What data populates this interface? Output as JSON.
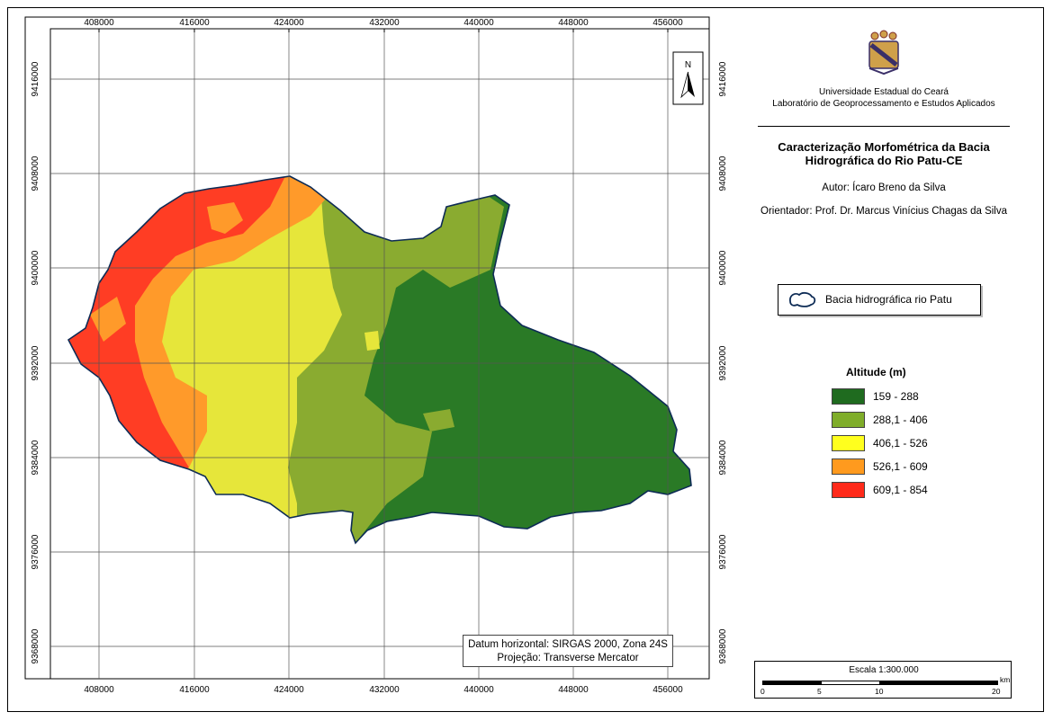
{
  "map": {
    "x_ticks": [
      "408000",
      "416000",
      "424000",
      "432000",
      "440000",
      "448000",
      "456000"
    ],
    "y_ticks": [
      "9416000",
      "9408000",
      "9400000",
      "9392000",
      "9384000",
      "9376000",
      "9368000"
    ],
    "north_label": "N"
  },
  "header": {
    "university": "Universidade Estadual do Ceará",
    "lab": "Laboratório de Geoprocessamento e Estudos Aplicados",
    "title_line1": "Caracterização Morfométrica da Bacia",
    "title_line2": "Hidrográfica do Rio Patu-CE",
    "author": "Autor: Ícaro Breno da Silva",
    "advisor": "Orientador: Prof. Dr. Marcus Vinícius Chagas da Silva"
  },
  "legend": {
    "basin_label": "Bacia hidrográfica rio Patu",
    "altitude_title": "Altitude (m)",
    "classes": [
      {
        "label": "159 - 288",
        "color": "#1f6b1f"
      },
      {
        "label": "288,1 - 406",
        "color": "#7fad2a"
      },
      {
        "label": "406,1 - 526",
        "color": "#ffff1e"
      },
      {
        "label": "526,1 - 609",
        "color": "#ff9a1e"
      },
      {
        "label": "609,1 - 854",
        "color": "#ff2a1a"
      }
    ]
  },
  "datum": {
    "line1": "Datum horizontal: SIRGAS 2000, Zona 24S",
    "line2": "Projeção: Transverse Mercator"
  },
  "scale": {
    "title": "Escala 1:300.000",
    "unit": "km",
    "ticks": [
      "0",
      "5",
      "10",
      "20"
    ]
  }
}
